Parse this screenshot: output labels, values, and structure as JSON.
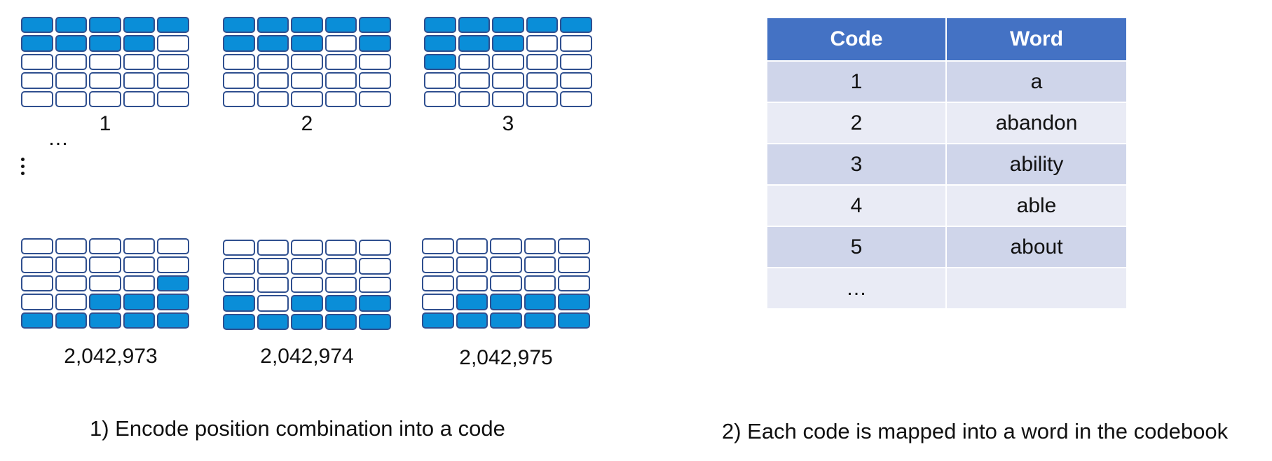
{
  "grids": [
    {
      "label": "1",
      "rows": [
        "11111",
        "11110",
        "00000",
        "00000",
        "00000"
      ]
    },
    {
      "label": "2",
      "rows": [
        "11111",
        "11101",
        "00000",
        "00000",
        "00000"
      ]
    },
    {
      "label": "3",
      "rows": [
        "11111",
        "11100",
        "10000",
        "00000",
        "00000"
      ]
    },
    {
      "label": "2,042,973",
      "rows": [
        "00000",
        "00000",
        "00001",
        "00111",
        "11111"
      ]
    },
    {
      "label": "2,042,974",
      "rows": [
        "00000",
        "00000",
        "00000",
        "10111",
        "11111"
      ]
    },
    {
      "label": "2,042,975",
      "rows": [
        "00000",
        "00000",
        "00000",
        "01111",
        "11111"
      ]
    }
  ],
  "ellipsis_h": "…",
  "captions": {
    "left": "1) Encode position combination into a code",
    "right": "2) Each code is mapped into a word in the codebook"
  },
  "codebook": {
    "headers": [
      "Code",
      "Word"
    ],
    "rows": [
      [
        "1",
        "a"
      ],
      [
        "2",
        "abandon"
      ],
      [
        "3",
        "ability"
      ],
      [
        "4",
        "able"
      ],
      [
        "5",
        "about"
      ],
      [
        "…",
        ""
      ]
    ]
  },
  "colors": {
    "filled": "#0a8ed8",
    "border": "#2f4f8f",
    "header": "#4472c4"
  }
}
